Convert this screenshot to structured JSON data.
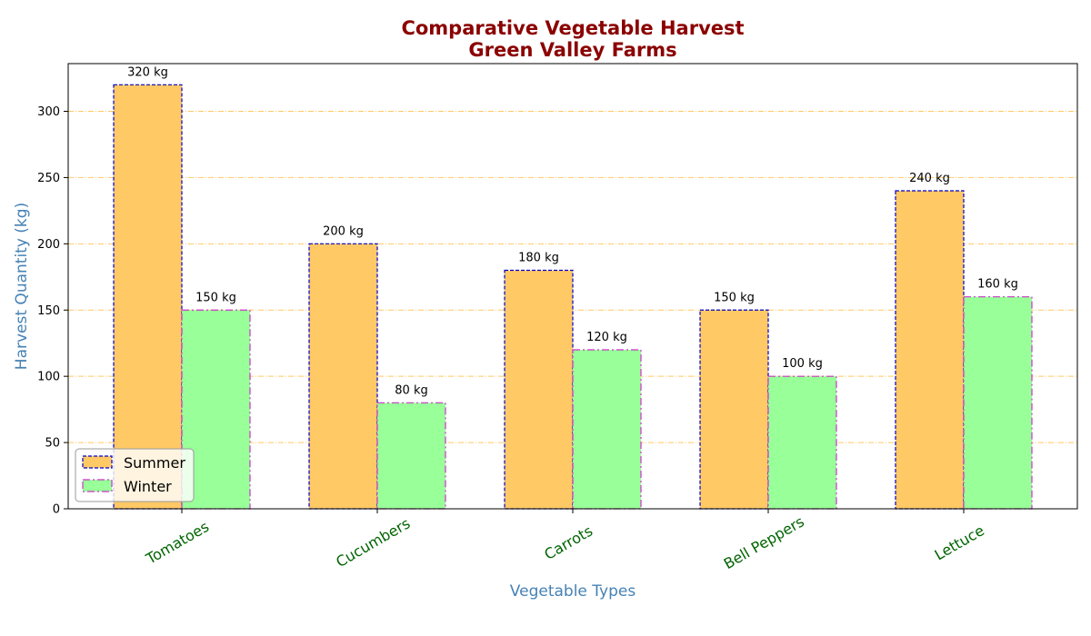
{
  "chart_data": {
    "type": "bar",
    "title_line1": "Comparative Vegetable Harvest",
    "title_line2": "Green Valley Farms",
    "xlabel": "Vegetable Types",
    "ylabel": "Harvest Quantity (kg)",
    "categories": [
      "Tomatoes",
      "Cucumbers",
      "Carrots",
      "Bell Peppers",
      "Lettuce"
    ],
    "series": [
      {
        "name": "Summer",
        "values": [
          320,
          200,
          180,
          150,
          240
        ],
        "color": "#ffc966",
        "edge_color": "#0000cc",
        "edge_style": "dashed"
      },
      {
        "name": "Winter",
        "values": [
          150,
          80,
          120,
          100,
          160
        ],
        "color": "#99ff99",
        "edge_color": "#cc33cc",
        "edge_style": "dashdot"
      }
    ],
    "value_suffix": " kg",
    "ylim": [
      0,
      336
    ],
    "yticks": [
      0,
      50,
      100,
      150,
      200,
      250,
      300
    ],
    "grid": "y",
    "grid_color": "#ffc966",
    "legend_position": "lower-left",
    "title_color": "#8b0000",
    "axis_label_color": "#4682b4",
    "category_label_color": "#006400"
  }
}
